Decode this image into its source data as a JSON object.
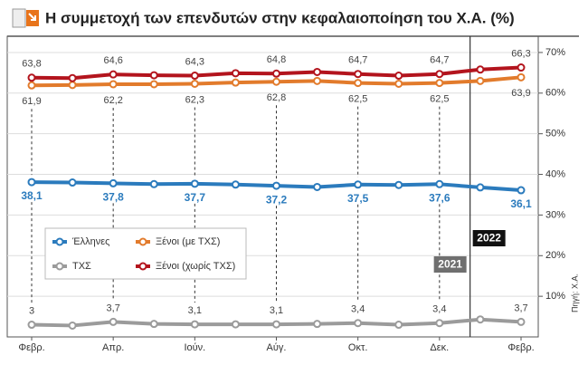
{
  "chart_data": {
    "type": "line",
    "title": "Η συμμετοχή των επενδυτών στην κεφαλαιοποίηση του Χ.Α. (%)",
    "categories": [
      "Φεβρ.",
      null,
      "Απρ.",
      null,
      "Ιούν.",
      null,
      "Αύγ.",
      null,
      "Οκτ.",
      null,
      "Δεκ.",
      null,
      "Φεβρ."
    ],
    "series": [
      {
        "name": "Έλληνες",
        "color": "#2b7bbd",
        "values": [
          38.1,
          38.0,
          37.8,
          37.6,
          37.7,
          37.5,
          37.2,
          36.9,
          37.5,
          37.4,
          37.6,
          36.8,
          36.1
        ],
        "value_labels": [
          "38,1",
          null,
          "37,8",
          null,
          "37,7",
          null,
          "37,2",
          null,
          "37,5",
          null,
          "37,6",
          null,
          "36,1"
        ]
      },
      {
        "name": "Ξένοι (με ΤΧΣ)",
        "color": "#e27b2c",
        "values": [
          61.9,
          62.0,
          62.2,
          62.2,
          62.3,
          62.6,
          62.8,
          63.0,
          62.5,
          62.3,
          62.5,
          63.0,
          63.9
        ],
        "value_labels": [
          "61,9",
          null,
          "62,2",
          null,
          "62,3",
          null,
          "62,8",
          null,
          "62,5",
          null,
          "62,5",
          null,
          "63,9"
        ]
      },
      {
        "name": "ΤΧΣ",
        "color": "#9b9b9b",
        "values": [
          3,
          2.8,
          3.7,
          3.2,
          3.1,
          3.1,
          3.1,
          3.2,
          3.4,
          3.0,
          3.4,
          4.3,
          3.7
        ],
        "value_labels": [
          "3",
          null,
          "3,7",
          null,
          "3,1",
          null,
          "3,1",
          null,
          "3,4",
          null,
          "3,4",
          null,
          "3,7"
        ]
      },
      {
        "name": "Ξένοι (χωρίς ΤΧΣ)",
        "color": "#b3141d",
        "values": [
          63.8,
          63.7,
          64.6,
          64.4,
          64.3,
          64.9,
          64.8,
          65.2,
          64.7,
          64.3,
          64.7,
          65.8,
          66.3
        ],
        "value_labels": [
          "63,8",
          null,
          "64,6",
          null,
          "64,3",
          null,
          "64,8",
          null,
          "64,7",
          null,
          "64,7",
          null,
          "66,3"
        ]
      }
    ],
    "ylim": [
      0,
      74
    ],
    "yticks": [
      {
        "value": 10,
        "label": "10%"
      },
      {
        "value": 20,
        "label": "20%"
      },
      {
        "value": 30,
        "label": "30%"
      },
      {
        "value": 40,
        "label": "40%"
      },
      {
        "value": 50,
        "label": "50%"
      },
      {
        "value": 60,
        "label": "60%"
      },
      {
        "value": 70,
        "label": "70%"
      }
    ],
    "grid": true,
    "year_labels": [
      "2021",
      "2022"
    ],
    "source": "Πηγή: Χ.Α."
  }
}
